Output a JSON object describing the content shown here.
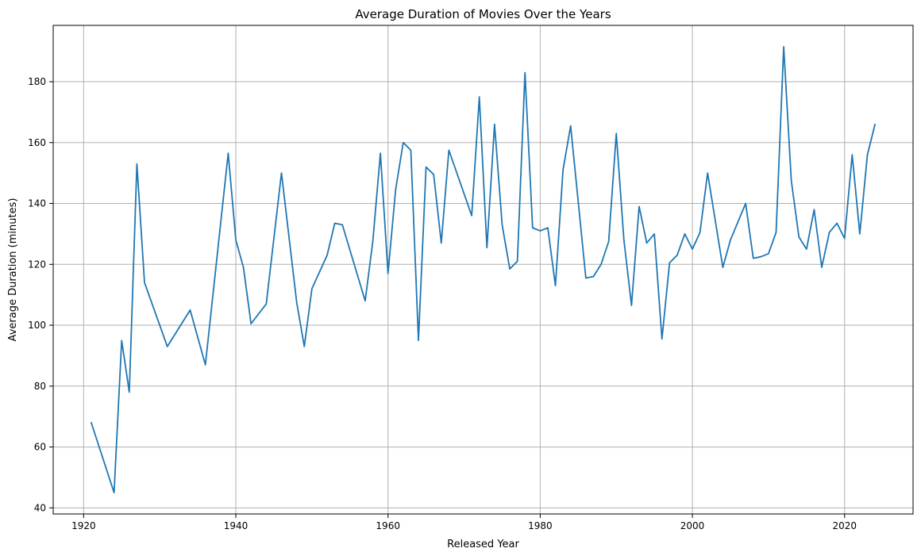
{
  "chart_data": {
    "type": "line",
    "title": "Average Duration of Movies Over the Years",
    "xlabel": "Released Year",
    "ylabel": "Average Duration (minutes)",
    "xlim": [
      1916,
      2029
    ],
    "ylim": [
      38,
      198.5
    ],
    "xticks": [
      1920,
      1940,
      1960,
      1980,
      2000,
      2020
    ],
    "yticks": [
      40,
      60,
      80,
      100,
      120,
      140,
      160,
      180
    ],
    "grid": true,
    "series": [
      {
        "color": "#1f77b4",
        "x": [
          1921,
          1924,
          1925,
          1926,
          1927,
          1928,
          1931,
          1934,
          1936,
          1939,
          1940,
          1941,
          1942,
          1944,
          1946,
          1948,
          1949,
          1950,
          1952,
          1953,
          1954,
          1957,
          1958,
          1959,
          1960,
          1961,
          1962,
          1963,
          1964,
          1965,
          1966,
          1967,
          1968,
          1971,
          1972,
          1973,
          1974,
          1975,
          1976,
          1977,
          1978,
          1979,
          1980,
          1981,
          1982,
          1983,
          1984,
          1986,
          1987,
          1988,
          1989,
          1990,
          1991,
          1992,
          1993,
          1994,
          1995,
          1996,
          1997,
          1998,
          1999,
          2000,
          2001,
          2002,
          2004,
          2005,
          2007,
          2008,
          2009,
          2010,
          2011,
          2012,
          2013,
          2014,
          2015,
          2016,
          2017,
          2018,
          2019,
          2020,
          2021,
          2022,
          2023,
          2024
        ],
        "y": [
          68,
          45,
          95,
          78,
          153,
          114,
          93,
          105,
          87,
          156.5,
          128,
          119,
          100.5,
          107,
          150,
          107.5,
          93,
          112,
          123,
          133.5,
          133,
          108,
          127.5,
          156.5,
          117,
          144.5,
          160,
          157.5,
          95,
          152,
          149.5,
          127,
          157.5,
          136,
          175,
          125.5,
          166,
          133,
          118.5,
          121,
          183,
          132,
          131,
          132,
          113,
          151,
          165.5,
          115.5,
          116,
          120,
          127.5,
          163,
          128,
          106.5,
          139,
          127,
          130,
          95.5,
          120.5,
          123,
          130,
          125,
          130.5,
          150,
          119,
          128,
          140,
          122,
          122.5,
          123.5,
          130.5,
          191.5,
          147.5,
          129,
          125,
          138,
          119,
          130.5,
          133.5,
          128.5,
          156,
          130,
          156,
          166
        ]
      }
    ]
  }
}
